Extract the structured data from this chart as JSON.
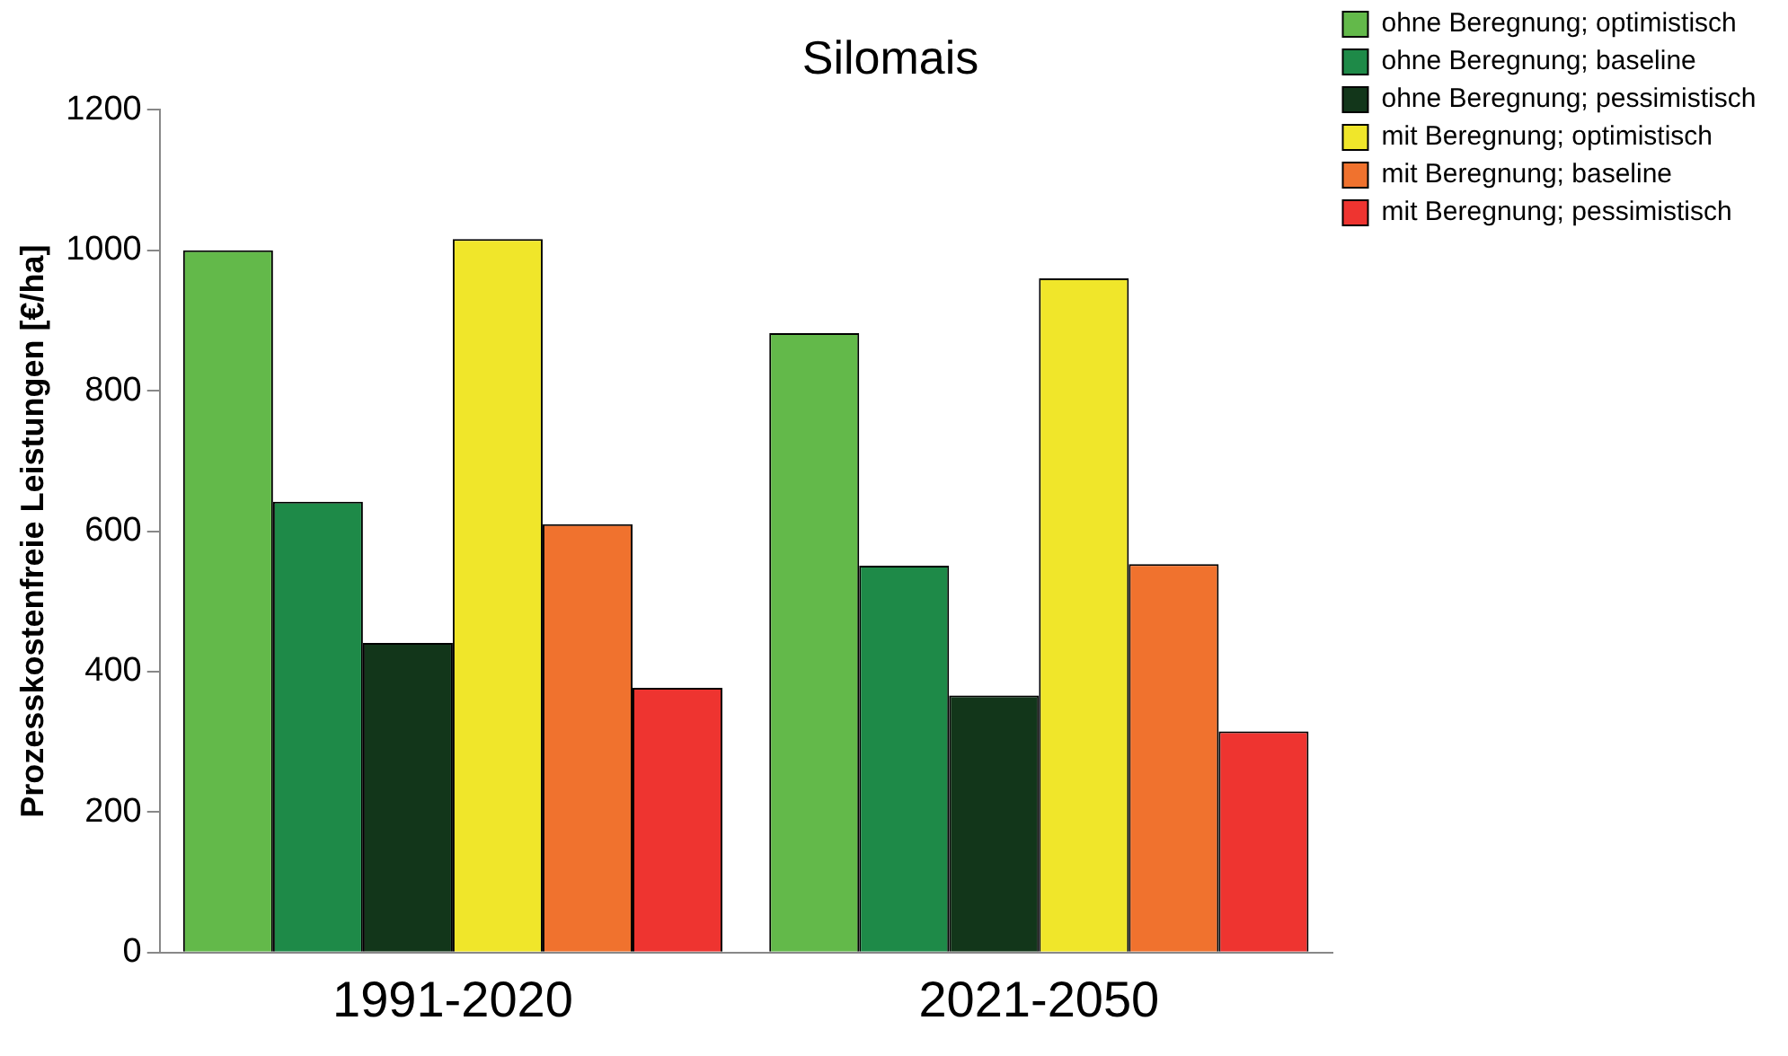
{
  "chart_data": {
    "type": "bar",
    "title": "Silomais",
    "ylabel": "Prozesskostenfreie Leistungen [€/ha]",
    "categories": [
      "1991-2020",
      "2021-2050"
    ],
    "series": [
      {
        "name": "ohne Beregnung; optimistisch",
        "color": "#63b94a",
        "values": [
          1000,
          882
        ]
      },
      {
        "name": "ohne Beregnung; baseline",
        "color": "#1e8a48",
        "values": [
          642,
          551
        ]
      },
      {
        "name": "ohne Beregnung; pessimistisch",
        "color": "#12361a",
        "values": [
          441,
          366
        ]
      },
      {
        "name": "mit Beregnung; optimistisch",
        "color": "#f0e62a",
        "values": [
          1016,
          960
        ]
      },
      {
        "name": "mit Beregnung; baseline",
        "color": "#f0722e",
        "values": [
          610,
          553
        ]
      },
      {
        "name": "mit Beregnung; pessimistisch",
        "color": "#ee3430",
        "values": [
          377,
          315
        ]
      }
    ],
    "ylim": [
      0,
      1200
    ],
    "yticks": [
      0,
      200,
      400,
      600,
      800,
      1000,
      1200
    ],
    "grid": false,
    "legend": "top right"
  }
}
